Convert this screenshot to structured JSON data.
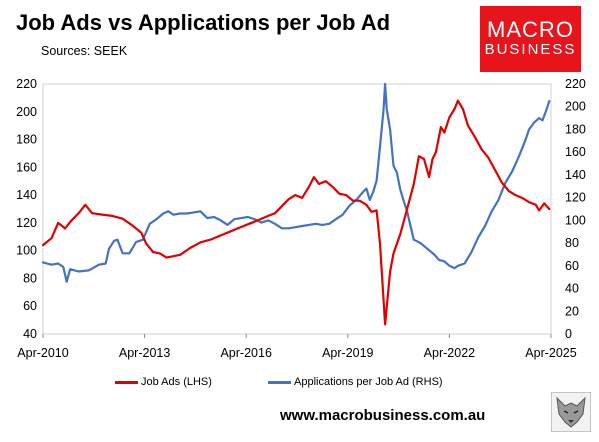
{
  "header": {
    "title": "Job Ads vs Applications per Job Ad",
    "subtitle": "Sources: SEEK"
  },
  "logo": {
    "line1": "MACRO",
    "line2": "BUSINESS"
  },
  "footer": {
    "website": "www.macrobusiness.com.au"
  },
  "colors": {
    "job_ads": "#e00000",
    "applications": "#4472c4",
    "logo_bg": "#e8141b"
  },
  "chart_data": {
    "type": "line",
    "x_tick_labels": [
      "Apr-2010",
      "Apr-2013",
      "Apr-2016",
      "Apr-2019",
      "Apr-2022",
      "Apr-2025"
    ],
    "xlim": [
      2010.25,
      2025.25
    ],
    "y_left": {
      "ticks": [
        40,
        60,
        80,
        100,
        120,
        140,
        160,
        180,
        200,
        220
      ],
      "lim": [
        40,
        220
      ],
      "axis": "LHS"
    },
    "y_right": {
      "ticks": [
        0,
        20,
        40,
        60,
        80,
        100,
        120,
        140,
        160,
        180,
        200,
        220
      ],
      "lim": [
        0,
        220
      ],
      "axis": "RHS"
    },
    "grid": false,
    "legend_position": "bottom",
    "series": [
      {
        "name": "Job Ads (LHS)",
        "axis": "left",
        "points": [
          [
            2010.25,
            104
          ],
          [
            2010.5,
            109
          ],
          [
            2010.7,
            120
          ],
          [
            2010.9,
            116
          ],
          [
            2011.1,
            122
          ],
          [
            2011.3,
            127
          ],
          [
            2011.5,
            133
          ],
          [
            2011.7,
            127
          ],
          [
            2012.0,
            126
          ],
          [
            2012.3,
            125
          ],
          [
            2012.6,
            123
          ],
          [
            2012.9,
            118
          ],
          [
            2013.15,
            113
          ],
          [
            2013.3,
            105
          ],
          [
            2013.5,
            99
          ],
          [
            2013.7,
            98
          ],
          [
            2013.9,
            95
          ],
          [
            2014.1,
            96
          ],
          [
            2014.3,
            97
          ],
          [
            2014.6,
            102
          ],
          [
            2014.9,
            106
          ],
          [
            2015.2,
            108
          ],
          [
            2015.5,
            111
          ],
          [
            2015.8,
            114
          ],
          [
            2016.0,
            116
          ],
          [
            2016.3,
            119
          ],
          [
            2016.6,
            122
          ],
          [
            2016.9,
            125
          ],
          [
            2017.1,
            127
          ],
          [
            2017.3,
            132
          ],
          [
            2017.5,
            137
          ],
          [
            2017.7,
            140
          ],
          [
            2017.9,
            138
          ],
          [
            2018.1,
            146
          ],
          [
            2018.25,
            153
          ],
          [
            2018.4,
            148
          ],
          [
            2018.6,
            150
          ],
          [
            2018.8,
            146
          ],
          [
            2019.0,
            141
          ],
          [
            2019.2,
            140
          ],
          [
            2019.4,
            136
          ],
          [
            2019.6,
            136
          ],
          [
            2019.8,
            133
          ],
          [
            2019.95,
            128
          ],
          [
            2020.1,
            129
          ],
          [
            2020.2,
            105
          ],
          [
            2020.35,
            47
          ],
          [
            2020.5,
            85
          ],
          [
            2020.6,
            98
          ],
          [
            2020.8,
            112
          ],
          [
            2021.0,
            130
          ],
          [
            2021.2,
            148
          ],
          [
            2021.35,
            168
          ],
          [
            2021.5,
            166
          ],
          [
            2021.65,
            153
          ],
          [
            2021.75,
            166
          ],
          [
            2021.85,
            171
          ],
          [
            2022.0,
            189
          ],
          [
            2022.1,
            185
          ],
          [
            2022.25,
            196
          ],
          [
            2022.4,
            202
          ],
          [
            2022.5,
            208
          ],
          [
            2022.65,
            202
          ],
          [
            2022.8,
            190
          ],
          [
            2023.0,
            182
          ],
          [
            2023.2,
            173
          ],
          [
            2023.4,
            167
          ],
          [
            2023.6,
            158
          ],
          [
            2023.8,
            149
          ],
          [
            2024.0,
            143
          ],
          [
            2024.2,
            140
          ],
          [
            2024.4,
            138
          ],
          [
            2024.6,
            135
          ],
          [
            2024.8,
            133
          ],
          [
            2024.9,
            129
          ],
          [
            2025.05,
            134
          ],
          [
            2025.2,
            130
          ]
        ]
      },
      {
        "name": "Applications per Job Ad (RHS)",
        "axis": "right",
        "points": [
          [
            2010.25,
            63
          ],
          [
            2010.5,
            61
          ],
          [
            2010.7,
            62
          ],
          [
            2010.85,
            59
          ],
          [
            2010.95,
            46
          ],
          [
            2011.05,
            57
          ],
          [
            2011.3,
            55
          ],
          [
            2011.6,
            56
          ],
          [
            2011.9,
            61
          ],
          [
            2012.1,
            62
          ],
          [
            2012.2,
            75
          ],
          [
            2012.35,
            82
          ],
          [
            2012.45,
            83
          ],
          [
            2012.6,
            71
          ],
          [
            2012.8,
            71
          ],
          [
            2013.0,
            81
          ],
          [
            2013.2,
            83
          ],
          [
            2013.4,
            97
          ],
          [
            2013.6,
            101
          ],
          [
            2013.8,
            106
          ],
          [
            2013.95,
            108
          ],
          [
            2014.1,
            105
          ],
          [
            2014.3,
            106
          ],
          [
            2014.5,
            106
          ],
          [
            2014.7,
            107
          ],
          [
            2014.9,
            108
          ],
          [
            2015.1,
            102
          ],
          [
            2015.3,
            103
          ],
          [
            2015.5,
            100
          ],
          [
            2015.7,
            96
          ],
          [
            2015.9,
            101
          ],
          [
            2016.1,
            102
          ],
          [
            2016.3,
            103
          ],
          [
            2016.5,
            101
          ],
          [
            2016.7,
            98
          ],
          [
            2016.9,
            100
          ],
          [
            2017.1,
            97
          ],
          [
            2017.3,
            93
          ],
          [
            2017.5,
            93
          ],
          [
            2017.7,
            94
          ],
          [
            2017.9,
            95
          ],
          [
            2018.1,
            96
          ],
          [
            2018.3,
            97
          ],
          [
            2018.5,
            96
          ],
          [
            2018.7,
            97
          ],
          [
            2018.9,
            101
          ],
          [
            2019.1,
            105
          ],
          [
            2019.3,
            113
          ],
          [
            2019.5,
            118
          ],
          [
            2019.7,
            125
          ],
          [
            2019.8,
            128
          ],
          [
            2019.9,
            118
          ],
          [
            2020.0,
            125
          ],
          [
            2020.1,
            135
          ],
          [
            2020.2,
            165
          ],
          [
            2020.3,
            196
          ],
          [
            2020.35,
            220
          ],
          [
            2020.4,
            198
          ],
          [
            2020.5,
            180
          ],
          [
            2020.6,
            148
          ],
          [
            2020.7,
            142
          ],
          [
            2020.8,
            127
          ],
          [
            2020.9,
            117
          ],
          [
            2021.0,
            108
          ],
          [
            2021.1,
            95
          ],
          [
            2021.2,
            83
          ],
          [
            2021.4,
            80
          ],
          [
            2021.6,
            75
          ],
          [
            2021.8,
            70
          ],
          [
            2021.95,
            65
          ],
          [
            2022.1,
            64
          ],
          [
            2022.25,
            60
          ],
          [
            2022.4,
            58
          ],
          [
            2022.5,
            60
          ],
          [
            2022.7,
            62
          ],
          [
            2022.9,
            72
          ],
          [
            2023.1,
            85
          ],
          [
            2023.3,
            95
          ],
          [
            2023.5,
            108
          ],
          [
            2023.7,
            118
          ],
          [
            2023.9,
            133
          ],
          [
            2024.1,
            143
          ],
          [
            2024.3,
            156
          ],
          [
            2024.5,
            171
          ],
          [
            2024.6,
            180
          ],
          [
            2024.75,
            186
          ],
          [
            2024.9,
            190
          ],
          [
            2025.0,
            188
          ],
          [
            2025.1,
            196
          ],
          [
            2025.2,
            205
          ]
        ]
      }
    ]
  }
}
